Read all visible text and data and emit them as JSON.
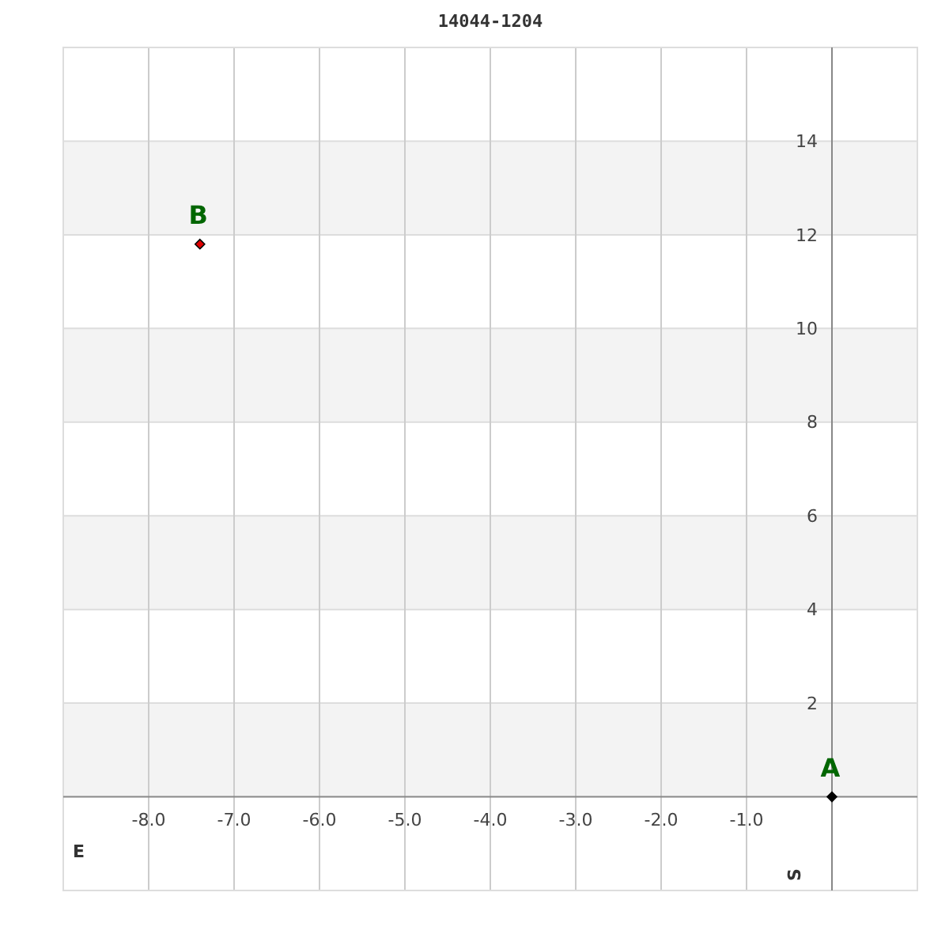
{
  "chart_data": {
    "type": "scatter",
    "title": "14044-1204",
    "xlabel": "E",
    "ylabel": "S",
    "x": [
      0,
      -7.4
    ],
    "values": [
      0,
      11.8
    ],
    "colors": [
      "#000000",
      "#e00000"
    ],
    "marker": "diamond",
    "xlim": [
      -9,
      1
    ],
    "ylim": [
      -2,
      16
    ],
    "xticks": [
      {
        "value": -8,
        "label": "-8.0"
      },
      {
        "value": -7,
        "label": "-7.0"
      },
      {
        "value": -6,
        "label": "-6.0"
      },
      {
        "value": -5,
        "label": "-5.0"
      },
      {
        "value": -4,
        "label": "-4.0"
      },
      {
        "value": -3,
        "label": "-3.0"
      },
      {
        "value": -2,
        "label": "-2.0"
      },
      {
        "value": -1,
        "label": "-1.0"
      }
    ],
    "yticks": [
      2,
      4,
      6,
      8,
      10,
      12,
      14
    ],
    "grid": true,
    "bands": [
      {
        "axis": "y",
        "from": 0,
        "to": 2,
        "color": "#f3f3f3"
      },
      {
        "axis": "y",
        "from": 4,
        "to": 6,
        "color": "#f3f3f3"
      },
      {
        "axis": "y",
        "from": 8,
        "to": 10,
        "color": "#f3f3f3"
      },
      {
        "axis": "y",
        "from": 12,
        "to": 14,
        "color": "#f3f3f3"
      }
    ],
    "annotations": [
      {
        "text": "A",
        "x": 0,
        "y": 0
      },
      {
        "text": "B",
        "x": -7.4,
        "y": 11.8
      }
    ]
  }
}
